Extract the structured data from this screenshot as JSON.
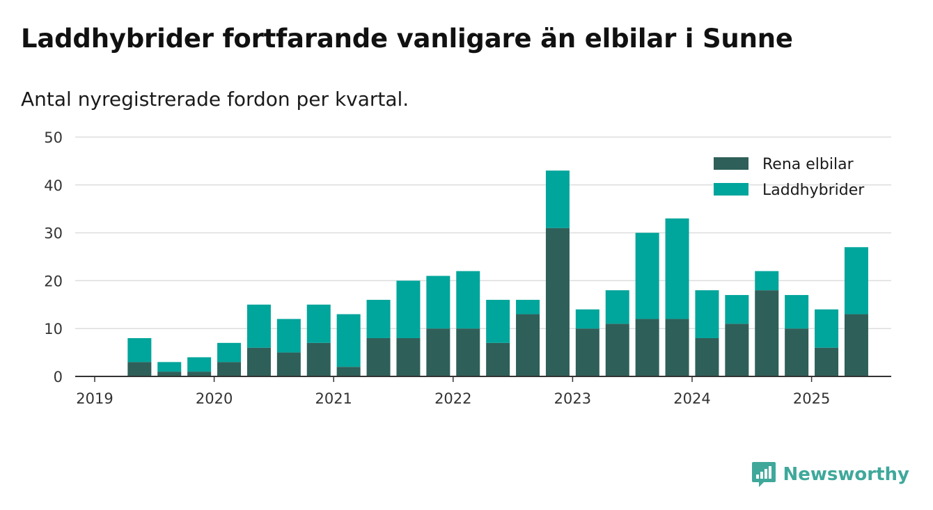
{
  "header": {
    "title": "Laddhybrider fortfarande vanligare än elbilar i Sunne",
    "subtitle": "Antal nyregistrerade fordon per kvartal."
  },
  "brand": {
    "name": "Newsworthy",
    "icon": "newsworthy-logo-icon",
    "color": "#3fa89b"
  },
  "colors": {
    "elbilar": "#2f5f59",
    "laddhybrider": "#00a59b",
    "grid": "#dddddd",
    "axis": "#333333"
  },
  "chart_data": {
    "type": "bar",
    "stacked": true,
    "title": "Laddhybrider fortfarande vanligare än elbilar i Sunne",
    "subtitle": "Antal nyregistrerade fordon per kvartal.",
    "xlabel": "",
    "ylabel": "",
    "ylim": [
      0,
      50
    ],
    "yticks": [
      0,
      10,
      20,
      30,
      40,
      50
    ],
    "xticks": [
      "2019",
      "2020",
      "2021",
      "2022",
      "2023",
      "2024",
      "2025"
    ],
    "grid": true,
    "legend_position": "top-right",
    "categories": [
      "2019-Q1",
      "2019-Q2",
      "2019-Q3",
      "2019-Q4",
      "2020-Q1",
      "2020-Q2",
      "2020-Q3",
      "2020-Q4",
      "2021-Q1",
      "2021-Q2",
      "2021-Q3",
      "2021-Q4",
      "2022-Q1",
      "2022-Q2",
      "2022-Q3",
      "2022-Q4",
      "2023-Q1",
      "2023-Q2",
      "2023-Q3",
      "2023-Q4",
      "2024-Q1",
      "2024-Q2",
      "2024-Q3",
      "2024-Q4",
      "2025-Q1",
      "2025-Q2"
    ],
    "series": [
      {
        "name": "Rena elbilar",
        "color": "#2f5f59",
        "values": [
          0,
          3,
          1,
          1,
          3,
          6,
          5,
          7,
          2,
          8,
          8,
          10,
          10,
          7,
          13,
          31,
          10,
          11,
          12,
          12,
          8,
          11,
          18,
          10,
          6,
          13
        ]
      },
      {
        "name": "Laddhybrider",
        "color": "#00a59b",
        "values": [
          0,
          5,
          2,
          3,
          4,
          9,
          7,
          8,
          11,
          8,
          12,
          11,
          12,
          9,
          3,
          12,
          4,
          7,
          18,
          21,
          10,
          6,
          4,
          7,
          8,
          14
        ]
      }
    ]
  }
}
